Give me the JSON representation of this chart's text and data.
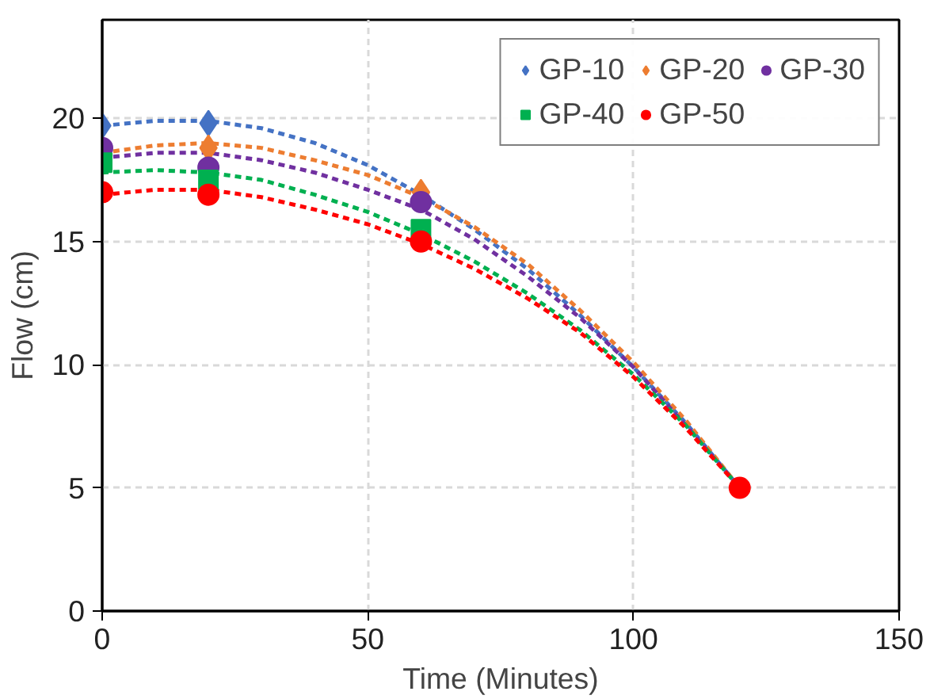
{
  "chart_data": {
    "type": "scatter",
    "xlabel": "Time (Minutes)",
    "ylabel": "Flow (cm)",
    "xlim": [
      0,
      150
    ],
    "ylim": [
      0,
      24
    ],
    "xticks": [
      0,
      50,
      100,
      150
    ],
    "yticks": [
      0,
      5,
      10,
      15,
      20
    ],
    "grid": true,
    "legend": "top right",
    "series": [
      {
        "name": "GP-10",
        "color": "#4472c4",
        "marker": "diamond",
        "x": [
          0,
          20
        ],
        "values": [
          19.7,
          19.8
        ]
      },
      {
        "name": "GP-20",
        "color": "#ed7d31",
        "marker": "diamond",
        "x": [
          20,
          60
        ],
        "values": [
          18.8,
          17.0
        ]
      },
      {
        "name": "GP-30",
        "color": "#7030a0",
        "marker": "circle",
        "x": [
          0,
          20,
          60
        ],
        "values": [
          18.8,
          18.0,
          16.6
        ]
      },
      {
        "name": "GP-40",
        "color": "#00b050",
        "marker": "square",
        "x": [
          0,
          20,
          60
        ],
        "values": [
          18.2,
          17.5,
          15.5
        ]
      },
      {
        "name": "GP-50",
        "color": "#ff0000",
        "marker": "circle",
        "x": [
          0,
          20,
          60,
          120
        ],
        "values": [
          17.0,
          16.9,
          15.0,
          5
        ]
      },
      {
        "type": "line",
        "line_style": "dashed",
        "color": "#4472c4",
        "x": [
          0,
          10,
          20,
          30,
          40,
          50,
          60,
          70,
          80,
          90,
          100,
          110,
          120
        ],
        "values": [
          19.7,
          19.9,
          19.9,
          19.6,
          19.0,
          18.1,
          16.9,
          15.5,
          13.9,
          12.0,
          9.9,
          7.6,
          5.0
        ]
      },
      {
        "type": "line",
        "line_style": "dashed",
        "color": "#ed7d31",
        "x": [
          0,
          10,
          20,
          30,
          40,
          50,
          60,
          70,
          80,
          90,
          100,
          110,
          120
        ],
        "values": [
          18.6,
          18.9,
          19.0,
          18.8,
          18.3,
          17.7,
          16.8,
          15.6,
          14.1,
          12.2,
          10.1,
          7.7,
          5.0
        ]
      },
      {
        "type": "line",
        "line_style": "dashed",
        "color": "#7030a0",
        "x": [
          0,
          10,
          20,
          30,
          40,
          50,
          60,
          70,
          80,
          90,
          100,
          110,
          120
        ],
        "values": [
          18.4,
          18.6,
          18.6,
          18.3,
          17.8,
          17.1,
          16.3,
          15.1,
          13.6,
          11.9,
          9.9,
          7.5,
          5.0
        ]
      },
      {
        "type": "line",
        "line_style": "dashed",
        "color": "#00b050",
        "x": [
          0,
          10,
          20,
          30,
          40,
          50,
          60,
          70,
          80,
          90,
          100,
          110,
          120
        ],
        "values": [
          17.8,
          17.9,
          17.8,
          17.5,
          16.9,
          16.2,
          15.3,
          14.2,
          12.9,
          11.4,
          9.6,
          7.5,
          5.0
        ]
      },
      {
        "type": "line",
        "line_style": "dashed",
        "color": "#ff0000",
        "x": [
          0,
          10,
          20,
          30,
          40,
          50,
          60,
          70,
          80,
          90,
          100,
          110,
          120
        ],
        "values": [
          16.9,
          17.1,
          17.1,
          16.8,
          16.3,
          15.7,
          14.9,
          13.9,
          12.7,
          11.3,
          9.5,
          7.4,
          5.0
        ]
      }
    ]
  }
}
